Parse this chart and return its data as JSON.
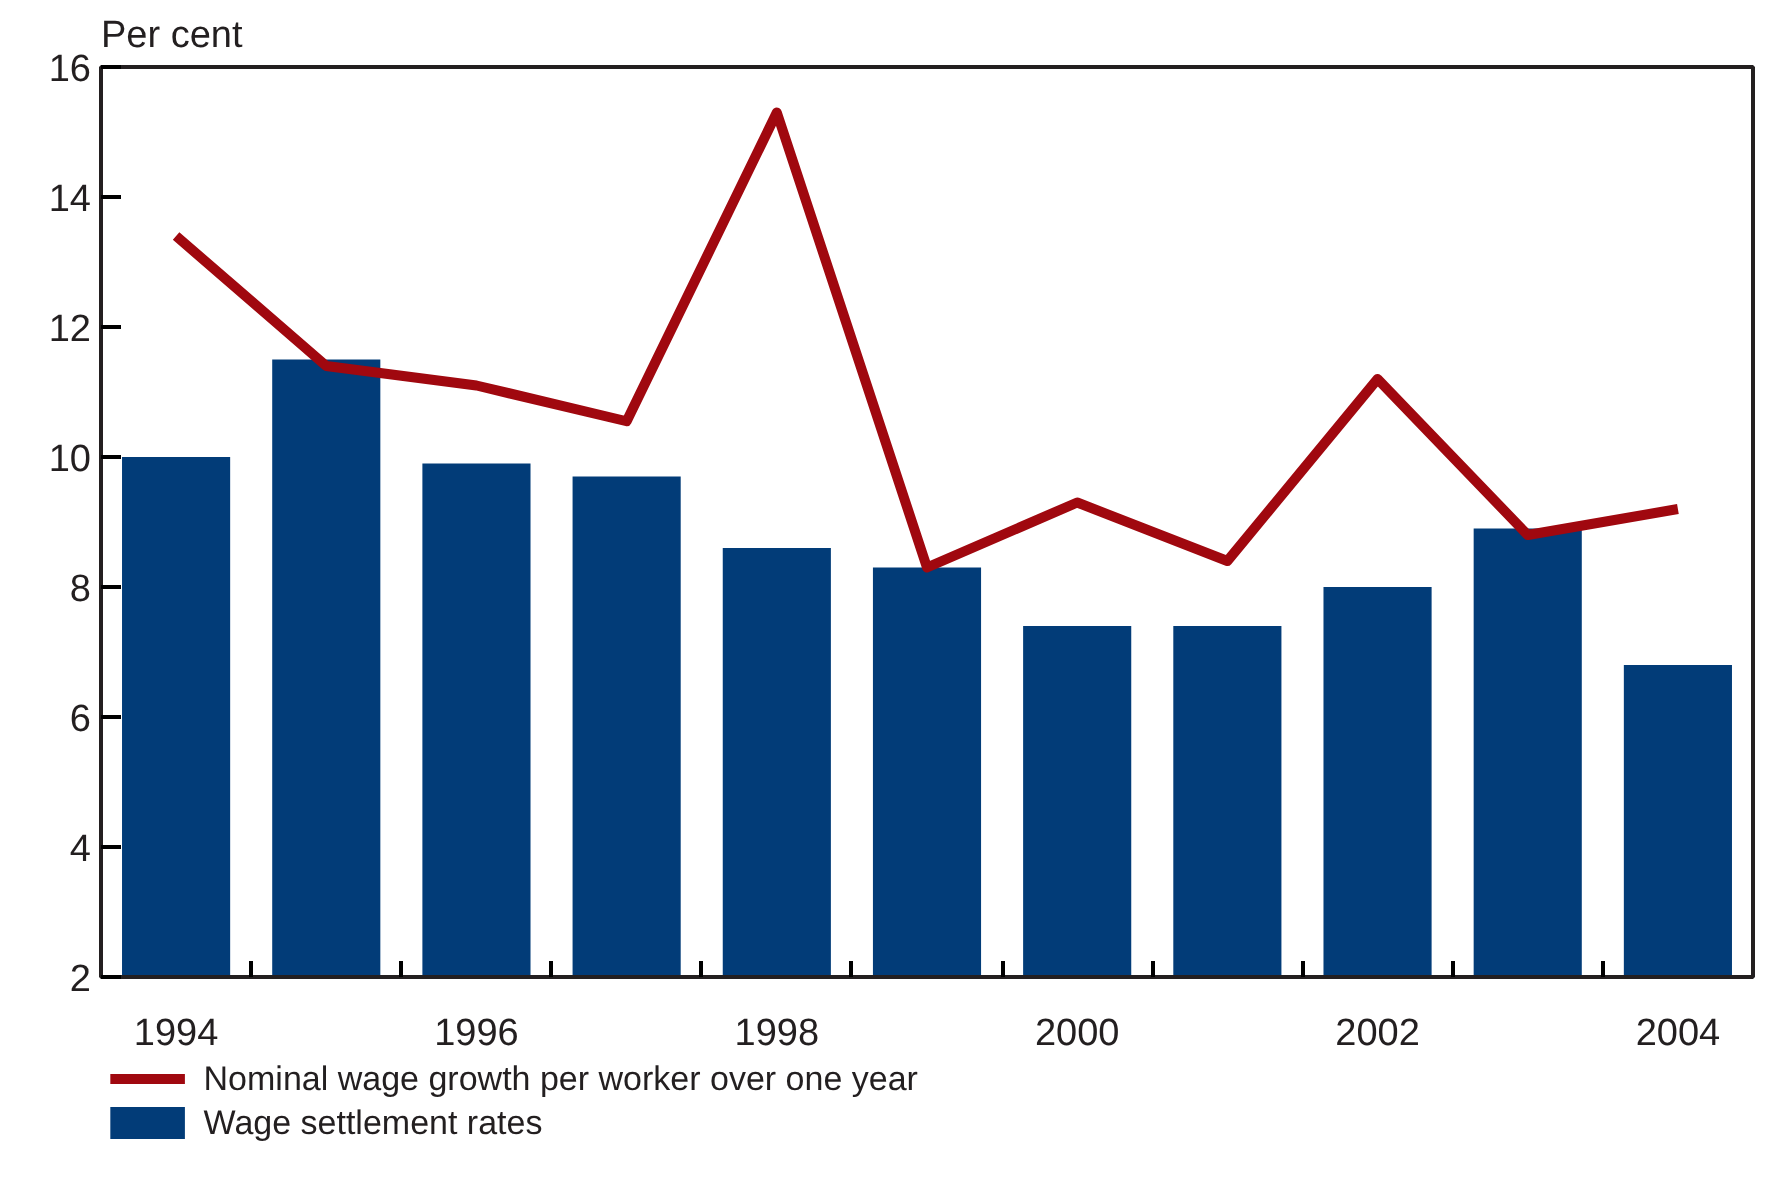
{
  "chart_data": {
    "type": "bar",
    "ylabel": "Per cent",
    "categories": [
      "1994",
      null,
      "1996",
      null,
      "1998",
      null,
      "2000",
      null,
      "2002",
      null,
      "2004"
    ],
    "ylim": [
      2,
      16
    ],
    "yticks": [
      2,
      4,
      6,
      8,
      10,
      12,
      14,
      16
    ],
    "legend": "bottom",
    "grid": false,
    "series": [
      {
        "name": "Nominal wage growth per worker over one year",
        "type": "line",
        "color": "#a0080f",
        "values": [
          13.4,
          11.4,
          11.1,
          10.55,
          15.3,
          8.3,
          9.3,
          8.4,
          11.2,
          8.8,
          9.2
        ]
      },
      {
        "name": "Wage settlement rates",
        "color": "#023c78",
        "values": [
          10.0,
          11.5,
          9.9,
          9.7,
          8.6,
          8.3,
          7.4,
          7.4,
          8.0,
          8.9,
          6.8
        ]
      }
    ]
  }
}
